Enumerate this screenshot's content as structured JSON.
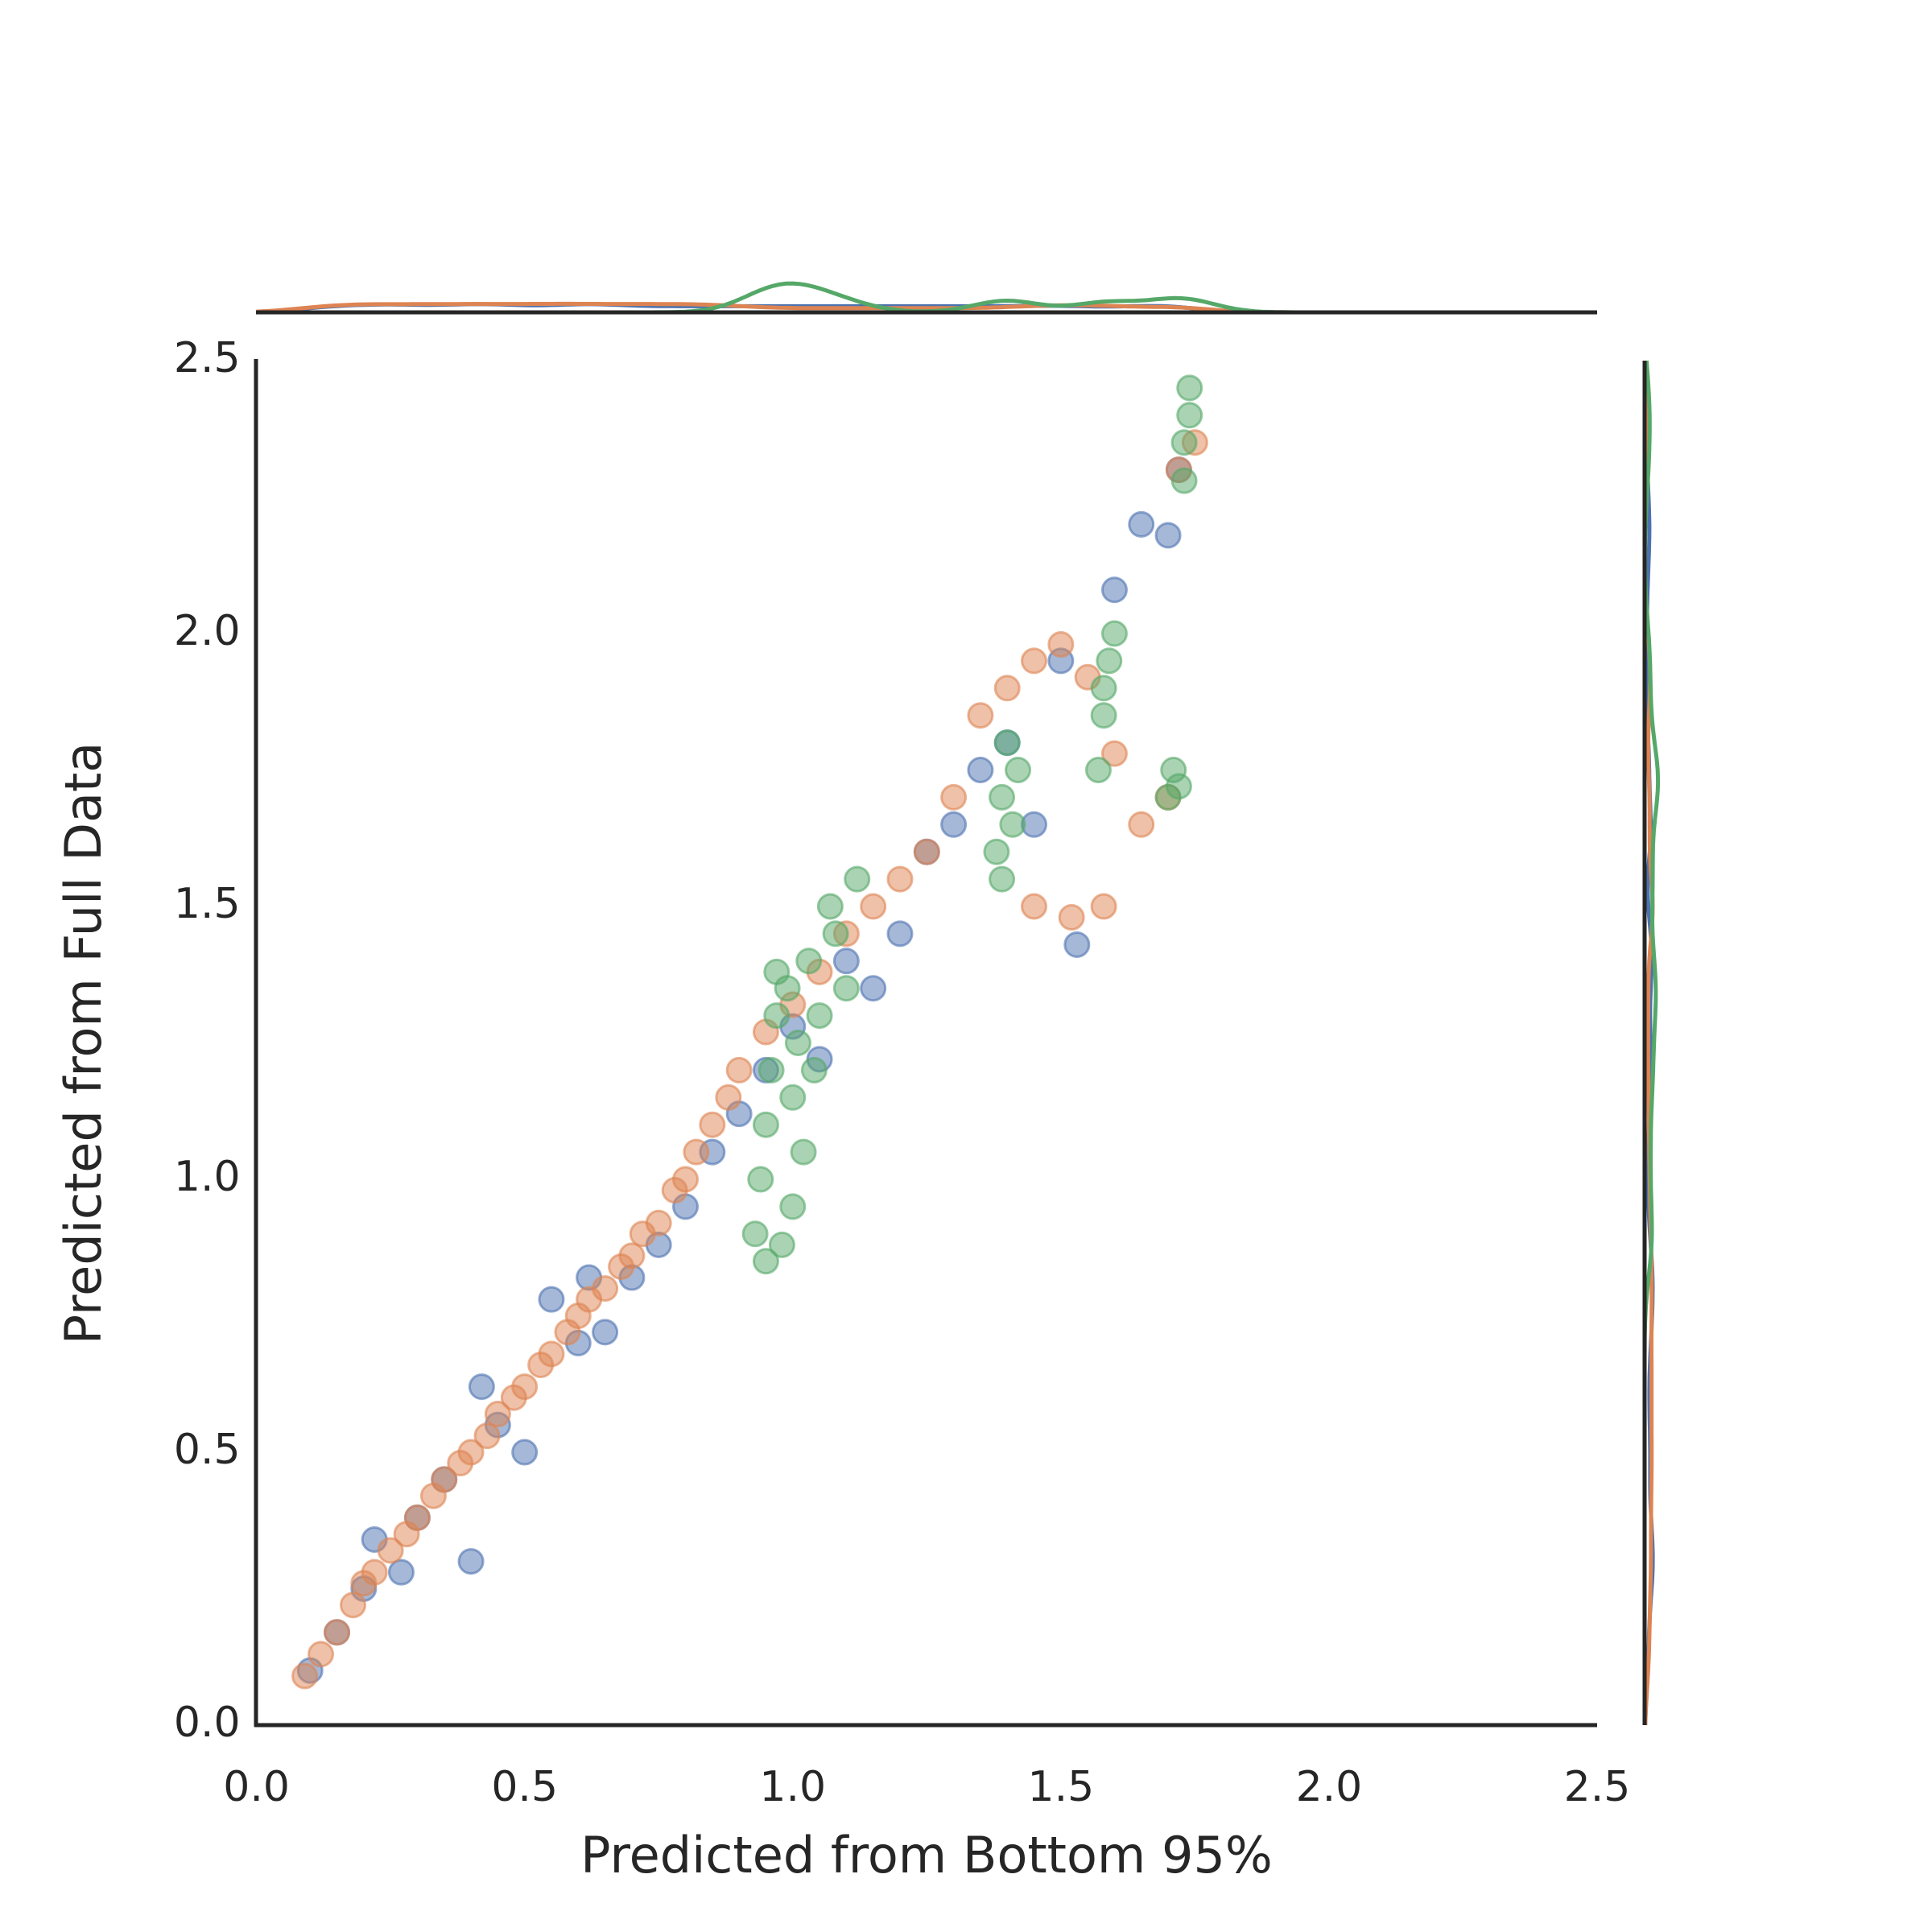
{
  "chart_data": {
    "type": "scatter",
    "xlabel": "Predicted from Bottom 95%",
    "ylabel": "Predicted from Full Data",
    "xlim": [
      0,
      2.5
    ],
    "ylim": [
      0,
      2.5
    ],
    "xticks": [
      {
        "value": 0,
        "label": "0.0"
      },
      0.5,
      {
        "value": 1,
        "label": "1.0"
      },
      1.5,
      {
        "value": 2,
        "label": "2.0"
      },
      2.5
    ],
    "yticks": [
      {
        "value": 0,
        "label": "0.0"
      },
      0.5,
      {
        "value": 1,
        "label": "1.0"
      },
      1.5,
      {
        "value": 2,
        "label": "2.0"
      },
      2.5
    ],
    "grid": false,
    "series": [
      {
        "color": "#4c72b0",
        "x": [
          0.1,
          0.15,
          0.2,
          0.22,
          0.27,
          0.3,
          0.35,
          0.4,
          0.42,
          0.45,
          0.5,
          0.55,
          0.6,
          0.62,
          0.65,
          0.7,
          0.75,
          0.8,
          0.85,
          0.9,
          0.95,
          1.0,
          1.05,
          1.1,
          1.15,
          1.2,
          1.25,
          1.3,
          1.35,
          1.4,
          1.45,
          1.5,
          1.53,
          1.6,
          1.65,
          1.7,
          1.72
        ],
        "values": [
          0.1,
          0.17,
          0.25,
          0.34,
          0.28,
          0.38,
          0.45,
          0.3,
          0.62,
          0.55,
          0.5,
          0.78,
          0.7,
          0.82,
          0.72,
          0.82,
          0.88,
          0.95,
          1.05,
          1.12,
          1.2,
          1.28,
          1.22,
          1.4,
          1.35,
          1.45,
          1.6,
          1.65,
          1.75,
          1.8,
          1.65,
          1.95,
          1.43,
          2.08,
          2.2,
          2.18,
          2.3
        ]
      },
      {
        "color": "#dd8452",
        "x": [
          0.09,
          0.12,
          0.15,
          0.18,
          0.2,
          0.22,
          0.25,
          0.28,
          0.3,
          0.33,
          0.35,
          0.38,
          0.4,
          0.43,
          0.45,
          0.48,
          0.5,
          0.53,
          0.55,
          0.58,
          0.6,
          0.62,
          0.65,
          0.68,
          0.7,
          0.72,
          0.75,
          0.78,
          0.8,
          0.82,
          0.85,
          0.88,
          0.9,
          0.95,
          1.0,
          1.05,
          1.1,
          1.15,
          1.2,
          1.25,
          1.3,
          1.35,
          1.4,
          1.45,
          1.5,
          1.55,
          1.6,
          1.65,
          1.7,
          1.72,
          1.75,
          1.58,
          1.52,
          1.45
        ],
        "values": [
          0.09,
          0.13,
          0.17,
          0.22,
          0.26,
          0.28,
          0.32,
          0.35,
          0.38,
          0.42,
          0.45,
          0.48,
          0.5,
          0.53,
          0.57,
          0.6,
          0.62,
          0.66,
          0.68,
          0.72,
          0.75,
          0.78,
          0.8,
          0.84,
          0.86,
          0.9,
          0.92,
          0.98,
          1.0,
          1.05,
          1.1,
          1.15,
          1.2,
          1.27,
          1.32,
          1.38,
          1.45,
          1.5,
          1.55,
          1.6,
          1.7,
          1.85,
          1.9,
          1.95,
          1.98,
          1.92,
          1.78,
          1.65,
          1.7,
          2.3,
          2.35,
          1.5,
          1.48,
          1.5
        ]
      },
      {
        "color": "#55a868",
        "x": [
          0.93,
          0.94,
          0.95,
          0.96,
          0.97,
          0.98,
          0.99,
          1.0,
          1.01,
          1.02,
          1.03,
          1.05,
          1.07,
          1.08,
          1.1,
          1.12,
          0.95,
          1.0,
          1.04,
          0.97,
          1.38,
          1.39,
          1.4,
          1.41,
          1.42,
          1.39,
          1.57,
          1.58,
          1.59,
          1.6,
          1.58,
          1.7,
          1.71,
          1.72,
          1.73,
          1.74,
          1.74,
          1.73
        ],
        "values": [
          0.9,
          1.0,
          1.1,
          1.2,
          1.3,
          0.88,
          1.35,
          1.15,
          1.25,
          1.05,
          1.4,
          1.3,
          1.5,
          1.45,
          1.35,
          1.55,
          0.85,
          0.95,
          1.2,
          1.38,
          1.6,
          1.7,
          1.8,
          1.65,
          1.75,
          1.55,
          1.75,
          1.85,
          1.95,
          2.0,
          1.9,
          1.7,
          1.75,
          1.72,
          2.35,
          2.4,
          2.45,
          2.28
        ]
      }
    ]
  }
}
